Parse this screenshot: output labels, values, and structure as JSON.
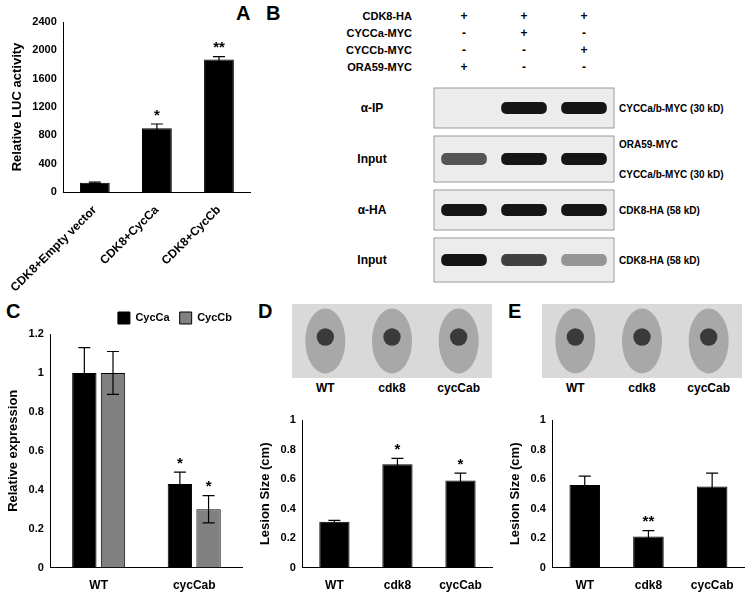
{
  "chart_data": [
    {
      "type": "bar",
      "panel": "A",
      "y_label": "Relative LUC activity",
      "categories": [
        "CDK8+Empty vector",
        "CDK8+CycCa",
        "CDK8+CycCb"
      ],
      "values": [
        130,
        900,
        1870
      ],
      "errors": [
        10,
        60,
        40
      ],
      "annotations": [
        null,
        "*",
        "**"
      ],
      "color": "#000000",
      "ylim": [
        0,
        2400
      ],
      "yticks": [
        0,
        400,
        800,
        1200,
        1600,
        2000,
        2400
      ],
      "grid": false
    },
    {
      "type": "bar",
      "panel": "C",
      "y_label": "Relative expression",
      "categories": [
        "WT",
        "cycCab"
      ],
      "series": [
        {
          "name": "CycCa",
          "color": "#000000",
          "values": [
            1,
            0.43
          ],
          "errors": [
            0.13,
            0.06
          ],
          "annotations": [
            null,
            "*"
          ]
        },
        {
          "name": "CycCb",
          "color": "#808080",
          "values": [
            1,
            0.3
          ],
          "errors": [
            0.11,
            0.07
          ],
          "annotations": [
            null,
            "*"
          ]
        }
      ],
      "ylim": [
        0,
        1.2
      ],
      "yticks": [
        0,
        0.2,
        0.4,
        0.6,
        0.8,
        1,
        1.2
      ],
      "grid": false,
      "legend": "upper right"
    },
    {
      "type": "bar",
      "panel": "D",
      "y_label": "Lesion Size (cm)",
      "photo_labels": [
        "WT",
        "cdk8",
        "cycCab"
      ],
      "categories": [
        "WT",
        "cdk8",
        "cycCab"
      ],
      "values": [
        0.31,
        0.7,
        0.59
      ],
      "errors": [
        0.01,
        0.04,
        0.05
      ],
      "annotations": [
        null,
        "*",
        "*"
      ],
      "color": "#000000",
      "ylim": [
        0,
        1
      ],
      "yticks": [
        0,
        0.2,
        0.4,
        0.6,
        0.8,
        1
      ],
      "grid": false
    },
    {
      "type": "bar",
      "panel": "E",
      "y_label": "Lesion Size (cm)",
      "photo_labels": [
        "WT",
        "cdk8",
        "cycCab"
      ],
      "categories": [
        "WT",
        "cdk8",
        "cycCab"
      ],
      "values": [
        0.56,
        0.21,
        0.55
      ],
      "errors": [
        0.06,
        0.04,
        0.09
      ],
      "annotations": [
        null,
        "**",
        null
      ],
      "color": "#000000",
      "ylim": [
        0,
        1
      ],
      "yticks": [
        0,
        0.2,
        0.4,
        0.6,
        0.8,
        1
      ],
      "grid": false
    }
  ],
  "blot": {
    "panel": "B",
    "rows": [
      {
        "label": "CDK8-HA",
        "signs": [
          "+",
          "+",
          "+"
        ]
      },
      {
        "label": "CYCCa-MYC",
        "signs": [
          "-",
          "+",
          "-"
        ]
      },
      {
        "label": "CYCCb-MYC",
        "signs": [
          "-",
          "-",
          "+"
        ]
      },
      {
        "label": "ORA59-MYC",
        "signs": [
          "+",
          "-",
          "-"
        ]
      }
    ],
    "blots": [
      {
        "label": "α-IP",
        "right_labels": [
          "CYCCa/b-MYC (30 kD)"
        ],
        "bands": [
          0,
          1,
          1
        ]
      },
      {
        "label": "Input",
        "right_labels": [
          "ORA59-MYC",
          "CYCCa/b-MYC (30 kD)"
        ],
        "bands": [
          0.7,
          1,
          1
        ]
      },
      {
        "label": "α-HA",
        "right_labels": [
          "CDK8-HA (58 kD)"
        ],
        "bands": [
          1,
          1,
          1
        ]
      },
      {
        "label": "Input",
        "right_labels": [
          "CDK8-HA (58 kD)"
        ],
        "bands": [
          1,
          0.8,
          0.4
        ]
      }
    ]
  }
}
